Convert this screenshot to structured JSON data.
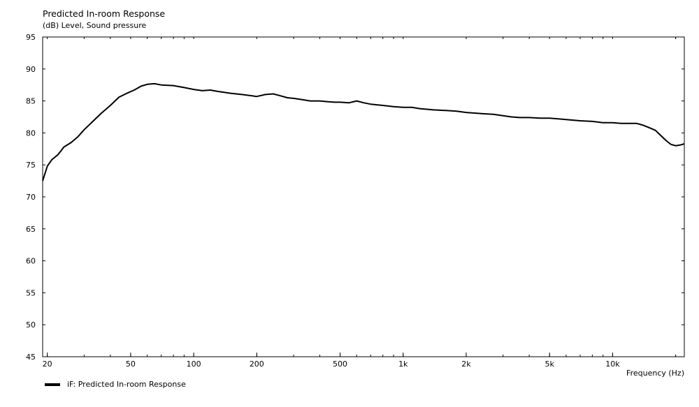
{
  "chart_data": {
    "type": "line",
    "title": "Predicted In-room Response",
    "ylabel": "(dB)  Level, Sound pressure",
    "xlabel": "Frequency  (Hz)",
    "xscale": "log",
    "xlim": [
      19,
      22000
    ],
    "ylim": [
      45,
      95
    ],
    "yticks": [
      45,
      50,
      55,
      60,
      65,
      70,
      75,
      80,
      85,
      90,
      95
    ],
    "xticks": [
      {
        "value": 20,
        "label": "20"
      },
      {
        "value": 50,
        "label": "50"
      },
      {
        "value": 100,
        "label": "100"
      },
      {
        "value": 200,
        "label": "200"
      },
      {
        "value": 500,
        "label": "500"
      },
      {
        "value": 1000,
        "label": "1k"
      },
      {
        "value": 2000,
        "label": "2k"
      },
      {
        "value": 5000,
        "label": "5k"
      },
      {
        "value": 10000,
        "label": "10k"
      }
    ],
    "grid": false,
    "legend_position": "bottom-left",
    "series": [
      {
        "name": "iF: Predicted In-room Response",
        "color": "#000000",
        "x": [
          19,
          20,
          21,
          22.5,
          24,
          26,
          28,
          30,
          33,
          36,
          40,
          44,
          48,
          52,
          56,
          60,
          65,
          70,
          80,
          90,
          100,
          110,
          120,
          130,
          150,
          170,
          190,
          200,
          220,
          240,
          260,
          280,
          300,
          330,
          360,
          400,
          430,
          470,
          500,
          550,
          600,
          650,
          700,
          800,
          900,
          1000,
          1100,
          1200,
          1400,
          1600,
          1800,
          2000,
          2200,
          2400,
          2700,
          3000,
          3300,
          3600,
          4000,
          4500,
          5000,
          5500,
          6000,
          7000,
          8000,
          9000,
          10000,
          11000,
          12000,
          13000,
          14000,
          15000,
          16000,
          17000,
          18000,
          19000,
          20000,
          21000,
          22000
        ],
        "y": [
          72.5,
          74.8,
          75.8,
          76.6,
          77.8,
          78.5,
          79.4,
          80.5,
          81.8,
          83.0,
          84.3,
          85.6,
          86.2,
          86.7,
          87.3,
          87.6,
          87.7,
          87.5,
          87.4,
          87.1,
          86.8,
          86.6,
          86.7,
          86.5,
          86.2,
          86.0,
          85.8,
          85.7,
          86.0,
          86.1,
          85.8,
          85.5,
          85.4,
          85.2,
          85.0,
          85.0,
          84.9,
          84.8,
          84.8,
          84.7,
          85.0,
          84.7,
          84.5,
          84.3,
          84.1,
          84.0,
          84.0,
          83.8,
          83.6,
          83.5,
          83.4,
          83.2,
          83.1,
          83.0,
          82.9,
          82.7,
          82.5,
          82.4,
          82.4,
          82.3,
          82.3,
          82.2,
          82.1,
          81.9,
          81.8,
          81.6,
          81.6,
          81.5,
          81.5,
          81.5,
          81.2,
          80.8,
          80.4,
          79.6,
          78.8,
          78.2,
          78.0,
          78.1,
          78.3
        ]
      }
    ]
  }
}
